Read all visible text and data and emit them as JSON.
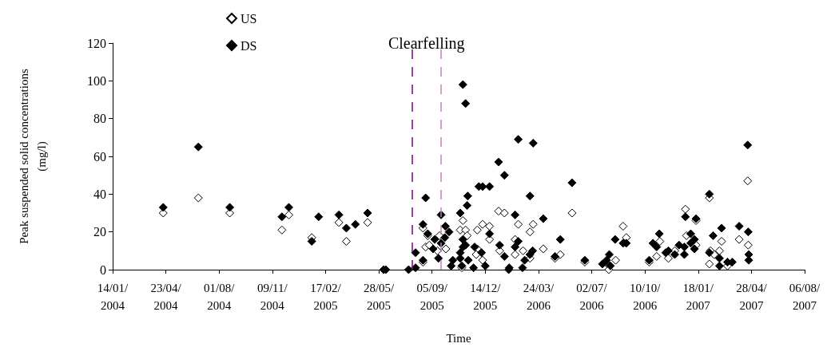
{
  "chart_data": {
    "type": "scatter",
    "xlabel": "Time",
    "ylabel": "Peak suspended solid concentrations\n(mg/l)",
    "annotations": [
      "Clearfelling"
    ],
    "xlim": [
      "2004-01-14",
      "2007-08-06"
    ],
    "xticks": [
      {
        "value": "2004-01-14",
        "label": "14/01/\n2004"
      },
      {
        "value": "2004-04-23",
        "label": "23/04/\n2004"
      },
      {
        "value": "2004-08-01",
        "label": "01/08/\n2004"
      },
      {
        "value": "2004-11-09",
        "label": "09/11/\n2004"
      },
      {
        "value": "2005-02-17",
        "label": "17/02/\n2005"
      },
      {
        "value": "2005-05-28",
        "label": "28/05/\n2005"
      },
      {
        "value": "2005-09-05",
        "label": "05/09/\n2005"
      },
      {
        "value": "2005-12-14",
        "label": "14/12/\n2005"
      },
      {
        "value": "2006-03-24",
        "label": "24/03/\n2006"
      },
      {
        "value": "2006-07-02",
        "label": "02/07/\n2006"
      },
      {
        "value": "2006-10-10",
        "label": "10/10/\n2006"
      },
      {
        "value": "2007-01-18",
        "label": "18/01/\n2007"
      },
      {
        "value": "2007-04-28",
        "label": "28/04/\n2007"
      },
      {
        "value": "2007-08-06",
        "label": "06/08/\n2007"
      }
    ],
    "ylim": [
      0,
      120
    ],
    "yticks": [
      0,
      20,
      40,
      60,
      80,
      100,
      120
    ],
    "grid": false,
    "legend": "top left",
    "marker": "diamond",
    "ref_lines": [
      {
        "axis": "x",
        "value": "2005-07-29",
        "color": "#800080",
        "line_style": "dashed"
      },
      {
        "axis": "x",
        "value": "2005-09-22",
        "color": "#c080c0",
        "line_style": "dashed"
      }
    ],
    "series": [
      {
        "name": "US",
        "color": "#ffffff",
        "x": [
          "2004-04-18",
          "2004-06-23",
          "2004-08-21",
          "2004-11-27",
          "2004-12-10",
          "2005-01-22",
          "2005-03-14",
          "2005-03-28",
          "2005-05-07",
          "2005-08-19",
          "2005-08-19",
          "2005-08-28",
          "2005-08-24",
          "2005-08-31",
          "2005-09-15",
          "2005-09-19",
          "2005-10-01",
          "2005-11-02",
          "2005-10-28",
          "2005-11-07",
          "2005-11-10",
          "2005-10-31",
          "2005-11-29",
          "2005-11-27",
          "2005-12-09",
          "2005-11-29",
          "2005-12-09",
          "2005-12-22",
          "2005-12-22",
          "2006-01-08",
          "2006-01-19",
          "2006-01-10",
          "2006-02-14",
          "2006-02-08",
          "2006-02-08",
          "2006-02-23",
          "2006-03-14",
          "2006-03-08",
          "2006-03-08",
          "2006-04-02",
          "2006-05-04",
          "2006-04-24",
          "2006-05-26",
          "2006-06-19",
          "2006-08-16",
          "2006-08-04",
          "2006-08-03",
          "2006-08-30",
          "2006-09-05",
          "2006-10-18",
          "2006-11-01",
          "2006-11-07",
          "2006-11-23",
          "2006-12-05",
          "2006-12-25",
          "2006-12-27",
          "2007-01-14",
          "2007-01-14",
          "2007-02-08",
          "2007-02-08",
          "2007-02-10",
          "2007-02-17",
          "2007-02-27",
          "2007-03-03",
          "2007-03-14",
          "2007-04-05",
          "2007-04-21",
          "2007-04-22"
        ],
        "values": [
          30,
          38,
          30,
          21,
          29,
          17,
          25,
          15,
          25,
          4,
          22,
          18,
          12,
          13,
          10,
          18,
          11,
          26,
          21,
          21,
          18,
          1,
          11,
          8,
          5,
          21,
          24,
          23,
          16,
          31,
          30,
          10,
          24,
          16,
          8,
          10,
          24,
          20,
          6,
          11,
          8,
          6,
          30,
          4,
          5,
          2,
          0,
          23,
          17,
          4,
          7,
          15,
          6,
          10,
          32,
          18,
          26,
          13,
          38,
          3,
          10,
          8,
          10,
          15,
          2,
          16,
          47,
          13
        ]
      },
      {
        "name": "DS",
        "color": "#000000",
        "x": [
          "2004-04-18",
          "2004-06-23",
          "2004-08-21",
          "2004-11-27",
          "2004-12-10",
          "2005-01-22",
          "2005-02-04",
          "2005-03-14",
          "2005-03-28",
          "2005-04-14",
          "2005-05-07",
          "2005-06-06",
          "2005-06-10",
          "2005-07-23",
          "2005-08-05",
          "2005-08-05",
          "2005-08-19",
          "2005-08-19",
          "2005-08-24",
          "2005-08-28",
          "2005-09-10",
          "2005-09-07",
          "2005-09-17",
          "2005-09-22",
          "2005-09-22",
          "2005-09-30",
          "2005-10-07",
          "2005-09-29",
          "2005-10-14",
          "2005-10-11",
          "2005-10-28",
          "2005-11-02",
          "2005-11-07",
          "2005-11-10",
          "2005-11-11",
          "2005-11-02",
          "2005-11-02",
          "2005-11-07",
          "2005-10-28",
          "2005-10-28",
          "2005-10-31",
          "2005-11-12",
          "2005-11-22",
          "2005-11-24",
          "2005-12-07",
          "2005-12-02",
          "2005-12-09",
          "2005-12-14",
          "2005-12-22",
          "2005-12-22",
          "2006-01-08",
          "2006-01-19",
          "2006-01-10",
          "2006-01-19",
          "2006-01-27",
          "2006-01-28",
          "2006-02-08",
          "2006-02-14",
          "2006-02-14",
          "2006-02-08",
          "2006-02-26",
          "2006-02-22",
          "2006-03-08",
          "2006-03-14",
          "2006-03-13",
          "2006-03-08",
          "2006-04-02",
          "2006-05-04",
          "2006-04-24",
          "2006-05-26",
          "2006-06-19",
          "2006-07-22",
          "2006-07-30",
          "2006-08-04",
          "2006-08-06",
          "2006-08-15",
          "2006-08-30",
          "2006-09-05",
          "2006-10-18",
          "2006-10-25",
          "2006-11-06",
          "2006-11-01",
          "2006-11-18",
          "2006-11-23",
          "2006-12-05",
          "2006-12-13",
          "2006-12-23",
          "2006-12-23",
          "2006-12-25",
          "2007-01-04",
          "2007-01-04",
          "2007-01-11",
          "2007-01-11",
          "2007-01-14",
          "2007-02-08",
          "2007-02-08",
          "2007-02-15",
          "2007-02-27",
          "2007-02-27",
          "2007-03-03",
          "2007-03-14",
          "2007-03-23",
          "2007-04-05",
          "2007-04-21",
          "2007-04-22",
          "2007-04-23",
          "2007-04-23"
        ],
        "values": [
          33,
          65,
          33,
          28,
          33,
          15,
          28,
          29,
          22,
          24,
          30,
          0,
          0,
          0,
          1,
          9,
          5,
          24,
          38,
          19,
          16,
          11,
          6,
          29,
          14,
          23,
          20,
          17,
          5,
          2,
          30,
          98,
          88,
          34,
          39,
          16,
          12,
          13,
          9,
          6,
          2,
          5,
          1,
          12,
          9,
          44,
          44,
          2,
          44,
          19,
          57,
          50,
          13,
          7,
          0,
          1,
          29,
          69,
          15,
          12,
          5,
          1,
          39,
          67,
          10,
          8,
          27,
          16,
          7,
          46,
          5,
          3,
          5,
          8,
          2,
          16,
          14,
          14,
          5,
          14,
          19,
          12,
          9,
          10,
          8,
          13,
          8,
          12,
          28,
          19,
          14,
          16,
          11,
          27,
          40,
          9,
          18,
          6,
          2,
          22,
          4,
          4,
          23,
          66,
          20,
          8,
          5
        ]
      }
    ]
  }
}
